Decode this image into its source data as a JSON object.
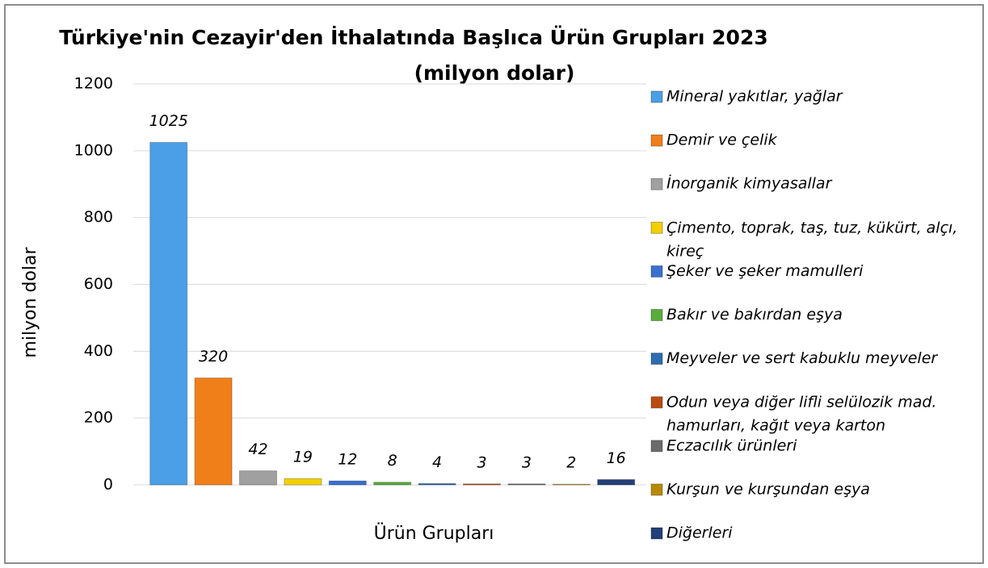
{
  "chart_data": {
    "type": "bar",
    "title": "Türkiye'nin Cezayir'den İthalatında Başlıca Ürün Grupları 2023",
    "subtitle": "(milyon dolar)",
    "y_label": "milyon dolar",
    "x_label": "Ürün Grupları",
    "ylim": [
      0,
      1200
    ],
    "yticks": [
      0,
      200,
      400,
      600,
      800,
      1000,
      1200
    ],
    "grid": true,
    "legend": "right",
    "series": [
      {
        "name": "Mineral yakıtlar, yağlar",
        "color": "#4a9fe6",
        "values": [
          1025
        ]
      },
      {
        "name": "Demir ve çelik",
        "color": "#f07f1a",
        "values": [
          320
        ]
      },
      {
        "name": "İnorganik kimyasallar",
        "color": "#a0a0a0",
        "values": [
          42
        ]
      },
      {
        "name": "Çimento, toprak, taş, tuz, kükürt, alçı, kireç",
        "color": "#f2d000",
        "values": [
          19
        ]
      },
      {
        "name": "Şeker ve şeker mamulleri",
        "color": "#3a6fd0",
        "values": [
          12
        ]
      },
      {
        "name": "Bakır ve bakırdan eşya",
        "color": "#5aac3c",
        "values": [
          8
        ]
      },
      {
        "name": "Meyveler ve sert kabuklu meyveler",
        "color": "#2c6cb0",
        "values": [
          4
        ]
      },
      {
        "name": "Odun veya diğer lifli selülozik mad. hamurları, kağıt veya karton",
        "color": "#b84c10",
        "values": [
          3
        ]
      },
      {
        "name": "Eczacılık ürünleri",
        "color": "#6a6a6a",
        "values": [
          3
        ]
      },
      {
        "name": "Kurşun ve kurşundan eşya",
        "color": "#b88a00",
        "values": [
          2
        ]
      },
      {
        "name": "Diğerleri",
        "color": "#24407a",
        "values": [
          16
        ]
      }
    ]
  }
}
